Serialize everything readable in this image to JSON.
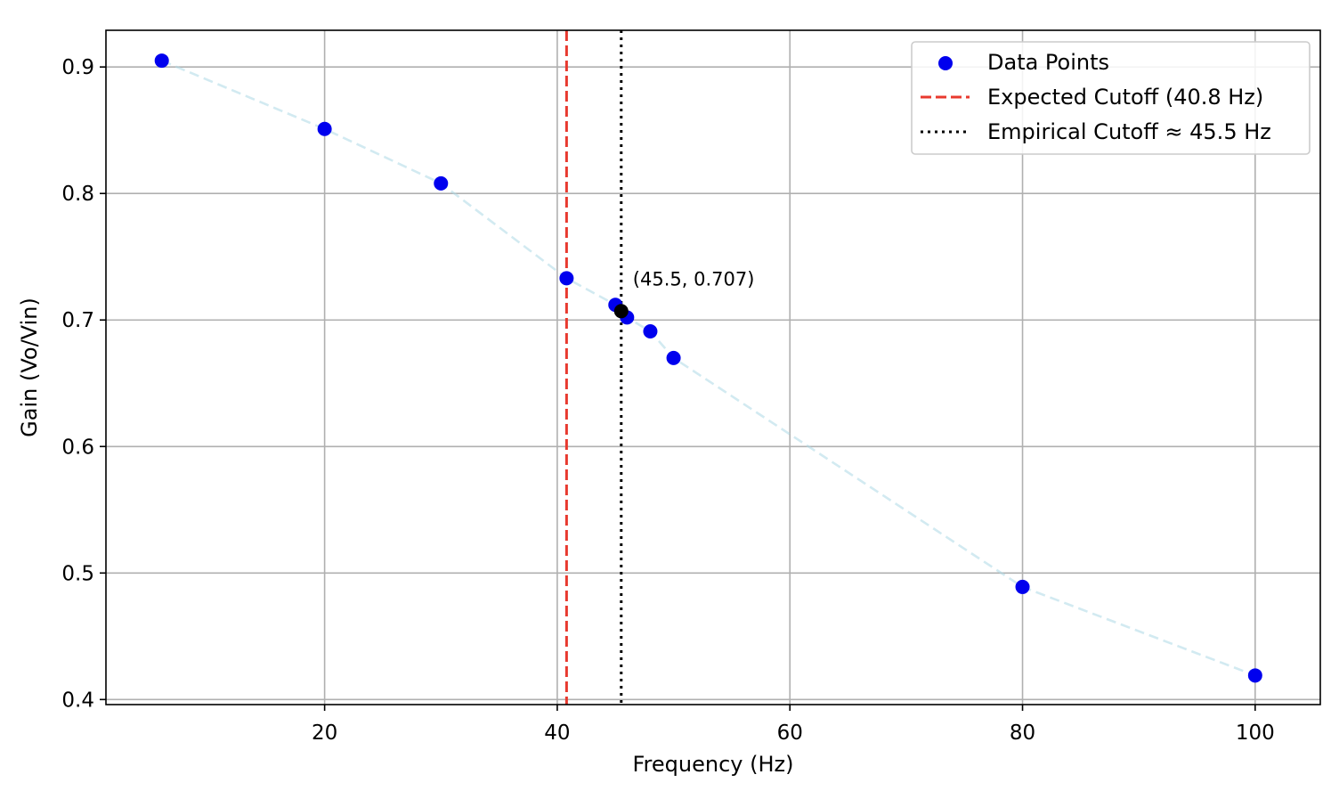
{
  "chart_data": {
    "type": "scatter",
    "title": "",
    "xlabel": "Frequency (Hz)",
    "ylabel": "Gain (Vo/Vin)",
    "xlim": [
      1.2,
      105.6
    ],
    "ylim": [
      0.396,
      0.929
    ],
    "xticks": [
      20,
      40,
      60,
      80,
      100
    ],
    "yticks": [
      0.4,
      0.5,
      0.6,
      0.7,
      0.8,
      0.9
    ],
    "xtick_labels": [
      "20",
      "40",
      "60",
      "80",
      "100"
    ],
    "ytick_labels": [
      "0.4",
      "0.5",
      "0.6",
      "0.7",
      "0.8",
      "0.9"
    ],
    "grid": true,
    "legend_position": "top-right",
    "series": [
      {
        "name": "Data Points",
        "kind": "scatter",
        "color": "#0000ee",
        "x": [
          6,
          20,
          30,
          40.8,
          45,
          46,
          48,
          50,
          80,
          100
        ],
        "y": [
          0.905,
          0.851,
          0.808,
          0.733,
          0.712,
          0.702,
          0.691,
          0.67,
          0.489,
          0.419
        ]
      },
      {
        "name": "",
        "kind": "line",
        "style": "dashed",
        "color": "#add8e6",
        "x": [
          6,
          20,
          30,
          40.8,
          45,
          46,
          48,
          50,
          80,
          100
        ],
        "y": [
          0.905,
          0.851,
          0.808,
          0.733,
          0.712,
          0.702,
          0.691,
          0.67,
          0.489,
          0.419
        ]
      }
    ],
    "vlines": [
      {
        "name": "Expected Cutoff (40.8 Hz)",
        "x": 40.8,
        "style": "dashed",
        "color": "#e8392e"
      },
      {
        "name": "Empirical Cutoff ≈ 45.5 Hz",
        "x": 45.5,
        "style": "dotted",
        "color": "#000000"
      }
    ],
    "highlight_point": {
      "x": 45.5,
      "y": 0.707,
      "color": "#000000",
      "label": "(45.5, 0.707)"
    },
    "legend": [
      {
        "label": "Data Points",
        "marker": "dot",
        "color": "#0000ee"
      },
      {
        "label": "Expected Cutoff (40.8 Hz)",
        "marker": "dashed-line",
        "color": "#e8392e"
      },
      {
        "label": "Empirical Cutoff ≈ 45.5 Hz",
        "marker": "dotted-line",
        "color": "#000000"
      }
    ]
  }
}
